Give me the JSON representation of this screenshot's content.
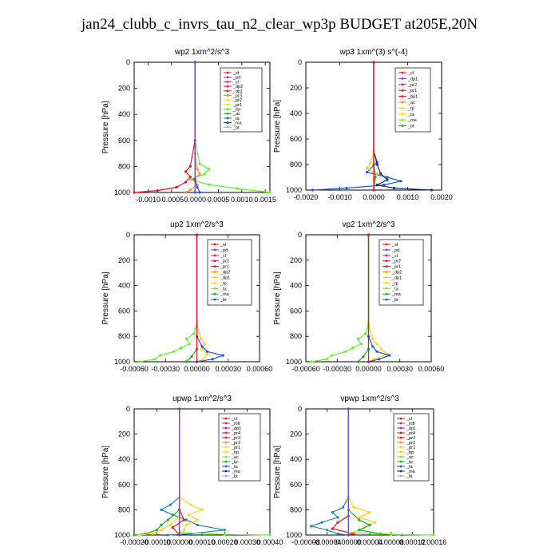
{
  "figure": {
    "title": "jan24_clubb_c_invrs_tau_n2_clear_wp3p  BUDGET at205E,20N"
  },
  "colors": {
    "red": "#e8102a",
    "magenta": "#d01a9a",
    "purple": "#7a3fc0",
    "orange": "#ff8c1a",
    "gold": "#ffd21a",
    "green": "#1faa2a",
    "lime": "#66ee33",
    "blue": "#1a55e8",
    "darkblue": "#1a2a8a",
    "cyan": "#33ddee",
    "gray": "#8888aa",
    "teal": "#2288aa"
  },
  "chart_data": [
    {
      "id": "wp2",
      "type": "line",
      "title": "wp2  1xm^2/s^3",
      "ylabel": "Pressure [hPa]",
      "ylim": [
        1000,
        0
      ],
      "xlim": [
        -0.0013,
        0.0016
      ],
      "yticks": [
        0,
        200,
        400,
        600,
        800,
        1000
      ],
      "xticks": [
        -0.001,
        -0.0005,
        0.0,
        0.0005,
        0.001,
        0.0015
      ],
      "xticklabels": [
        "-0.0010",
        "-0.0005",
        "0.0000",
        "0.0005",
        "0.0010",
        "0.0015"
      ],
      "legend_position": "top-right",
      "legend": [
        "_sf",
        "_pd",
        "_cl",
        "_dp2",
        "_dp1",
        "_pr3",
        "_pr2",
        "_pr1",
        "_bp",
        "_ac",
        "_ta",
        "_ma",
        "_bt"
      ],
      "series": [
        {
          "name": "_pr1",
          "color": "#66ee33",
          "y": [
            0,
            600,
            780,
            820,
            860,
            900,
            940,
            970,
            1000
          ],
          "x": [
            0,
            0,
            0.0001,
            0.0003,
            0.0002,
            -0.0001,
            0.0003,
            0.0009,
            0.0016
          ]
        },
        {
          "name": "_dp1",
          "color": "#e8102a",
          "y": [
            0,
            600,
            800,
            840,
            880,
            920,
            960,
            985,
            1000
          ],
          "x": [
            0,
            0,
            -0.0001,
            -0.0002,
            -0.0001,
            -0.0002,
            -0.0004,
            -0.0008,
            -0.0013
          ]
        },
        {
          "name": "_pr2",
          "color": "#ff8c1a",
          "y": [
            0,
            700,
            820,
            860,
            900,
            940,
            980,
            1000
          ],
          "x": [
            0,
            0,
            5e-05,
            0.0001,
            -5e-05,
            5e-05,
            -0.0001,
            -0.0002
          ]
        },
        {
          "name": "_ac",
          "color": "#1a55e8",
          "y": [
            0,
            900,
            960,
            1000
          ],
          "x": [
            0,
            0,
            5e-05,
            0.0001
          ]
        },
        {
          "name": "_bt",
          "color": "#7a3fc0",
          "y": [
            0,
            1000
          ],
          "x": [
            0,
            0
          ]
        }
      ]
    },
    {
      "id": "wp3",
      "type": "line",
      "title": "wp3  1xm^(3) s^(-4)",
      "ylabel": "Pressure [hPa]",
      "ylim": [
        1000,
        0
      ],
      "xlim": [
        -0.002,
        0.002
      ],
      "yticks": [
        0,
        200,
        400,
        600,
        800,
        1000
      ],
      "xticks": [
        -0.002,
        -0.001,
        0.0,
        0.001,
        0.002
      ],
      "xticklabels": [
        "-0.0020",
        "-0.0010",
        "0.0000",
        "0.0010",
        "0.0020"
      ],
      "legend_position": "top-right",
      "legend": [
        "_cl",
        "_dp1",
        "_pr2",
        "_pr1",
        "_bp1",
        "_ac",
        "_tp",
        "_ta",
        "_ma",
        "_bt"
      ],
      "series": [
        {
          "name": "_tp",
          "color": "#1a55e8",
          "y": [
            0,
            700,
            780,
            860,
            900,
            930,
            960,
            985,
            1000
          ],
          "x": [
            0,
            0,
            0.0001,
            -0.0002,
            0.0004,
            0.0008,
            0.0003,
            -0.0008,
            -0.0018
          ]
        },
        {
          "name": "_ta",
          "color": "#1a2a8a",
          "y": [
            0,
            700,
            800,
            870,
            920,
            960,
            985,
            1000
          ],
          "x": [
            0,
            0,
            0.0001,
            0.0002,
            0.0004,
            0.0001,
            0.0006,
            0.0017
          ]
        },
        {
          "name": "_pr1",
          "color": "#ffd21a",
          "y": [
            0,
            700,
            790,
            830,
            870,
            920,
            1000
          ],
          "x": [
            0,
            0,
            -0.0001,
            -0.0002,
            0.0001,
            0.0,
            0.0
          ]
        },
        {
          "name": "_ac",
          "color": "#1faa2a",
          "y": [
            0,
            800,
            900,
            1000
          ],
          "x": [
            0,
            0,
            5e-05,
            0.0
          ]
        },
        {
          "name": "_dp1",
          "color": "#e8102a",
          "y": [
            0,
            1000
          ],
          "x": [
            0,
            0
          ]
        }
      ]
    },
    {
      "id": "up2",
      "type": "line",
      "title": "up2  1xm^2/s^3",
      "ylabel": "Pressure [hPa]",
      "ylim": [
        1000,
        0
      ],
      "xlim": [
        -0.0006,
        0.0006
      ],
      "yticks": [
        0,
        200,
        400,
        600,
        800,
        1000
      ],
      "xticks": [
        -0.0006,
        -0.0003,
        0.0,
        0.0003,
        0.0006
      ],
      "xticklabels": [
        "-0.00060",
        "-0.00030",
        "0.00000",
        "0.00030",
        "0.00060"
      ],
      "legend_position": "top-right",
      "legend": [
        "_sf",
        "_pd",
        "_cl",
        "_pr2",
        "_pr1",
        "_dp2",
        "_dp1",
        "_tp",
        "_ta",
        "_ma",
        "_bt"
      ],
      "series": [
        {
          "name": "_dp1",
          "color": "#66ee33",
          "y": [
            0,
            700,
            780,
            820,
            860,
            890,
            920,
            950,
            980,
            1000
          ],
          "x": [
            0,
            0,
            -3e-05,
            -0.0001,
            -7e-05,
            -0.00015,
            -0.00022,
            -0.00035,
            -0.0004,
            -0.00055
          ]
        },
        {
          "name": "_pr1",
          "color": "#ffd21a",
          "y": [
            0,
            700,
            820,
            860,
            900,
            940,
            980,
            1000
          ],
          "x": [
            0,
            0,
            4e-05,
            8e-05,
            5e-05,
            0.0001,
            6e-05,
            0.0
          ]
        },
        {
          "name": "_tp",
          "color": "#1a55e8",
          "y": [
            0,
            800,
            880,
            920,
            950,
            980,
            1000
          ],
          "x": [
            0,
            0,
            5e-05,
            0.0001,
            0.00025,
            0.00015,
            0.0
          ]
        },
        {
          "name": "_dp2",
          "color": "#1faa2a",
          "y": [
            0,
            900,
            960,
            1000
          ],
          "x": [
            0,
            0,
            -5e-05,
            -0.0001
          ]
        },
        {
          "name": "_bt",
          "color": "#e8102a",
          "y": [
            0,
            1000
          ],
          "x": [
            0,
            0
          ]
        }
      ]
    },
    {
      "id": "vp2",
      "type": "line",
      "title": "vp2  1xm^2/s^3",
      "ylabel": "Pressure [hPa]",
      "ylim": [
        1000,
        0
      ],
      "xlim": [
        -0.0006,
        0.0006
      ],
      "yticks": [
        0,
        200,
        400,
        600,
        800,
        1000
      ],
      "xticks": [
        -0.0006,
        -0.0003,
        0.0,
        0.0003,
        0.0006
      ],
      "xticklabels": [
        "-0.00060",
        "-0.00030",
        "0.00000",
        "0.00030",
        "0.00060"
      ],
      "legend_position": "top-right",
      "legend": [
        "_sf",
        "_pd",
        "_cl",
        "_pr2",
        "_pr1",
        "_dp2",
        "_dp1",
        "_tp",
        "_ta",
        "_ma",
        "_bt"
      ],
      "series": [
        {
          "name": "_dp1",
          "color": "#66ee33",
          "y": [
            0,
            700,
            780,
            820,
            860,
            890,
            920,
            950,
            980,
            1000
          ],
          "x": [
            0,
            0,
            -3e-05,
            -0.0001,
            -7e-05,
            -0.00015,
            -0.00022,
            -0.00035,
            -0.0004,
            -0.00055
          ]
        },
        {
          "name": "_pr1",
          "color": "#ffd21a",
          "y": [
            0,
            700,
            820,
            860,
            900,
            940,
            980,
            1000
          ],
          "x": [
            0,
            0,
            4e-05,
            8e-05,
            0.00012,
            0.00018,
            5e-05,
            0.0
          ]
        },
        {
          "name": "_tp",
          "color": "#1a55e8",
          "y": [
            0,
            800,
            880,
            920,
            950,
            980,
            1000
          ],
          "x": [
            0,
            0,
            4e-05,
            8e-05,
            0.0002,
            0.0001,
            0.0
          ]
        },
        {
          "name": "_dp2",
          "color": "#1faa2a",
          "y": [
            0,
            900,
            960,
            1000
          ],
          "x": [
            0,
            0,
            -5e-05,
            -0.0001
          ]
        },
        {
          "name": "_bt",
          "color": "#e8102a",
          "y": [
            0,
            1000
          ],
          "x": [
            0,
            0
          ]
        }
      ]
    },
    {
      "id": "upwp",
      "type": "line",
      "title": "upwp  1xm^2/s^3",
      "ylabel": "Pressure [hPa]",
      "ylim": [
        1000,
        0
      ],
      "xlim": [
        -0.0002,
        0.0004
      ],
      "yticks": [
        0,
        200,
        400,
        600,
        800,
        1000
      ],
      "xticks": [
        -0.0002,
        -0.0001,
        0.0,
        0.0001,
        0.0002,
        0.0003,
        0.0004
      ],
      "xticklabels": [
        "-0.00020",
        "-0.00010",
        "0.00000",
        "0.00010",
        "0.00020",
        "0.00030",
        "0.00040"
      ],
      "legend_position": "top-right",
      "legend": [
        "_cl",
        "_mfl",
        "_dp1",
        "_pr4",
        "_pr3",
        "_pr2",
        "_pr1",
        "_bp",
        "_ac",
        "_tp",
        "_ta",
        "_ma",
        "_bt"
      ],
      "series": [
        {
          "name": "_ac",
          "color": "#2288aa",
          "y": [
            0,
            700,
            760,
            800,
            840,
            880,
            920,
            960,
            990,
            1000
          ],
          "x": [
            0,
            0,
            -4e-05,
            -8e-05,
            -3e-05,
            3e-05,
            8e-05,
            0.0002,
            5e-05,
            -5e-05
          ]
        },
        {
          "name": "_pr2",
          "color": "#ffd21a",
          "y": [
            0,
            700,
            760,
            800,
            840,
            880,
            920,
            960,
            1000
          ],
          "x": [
            0,
            0,
            5e-05,
            0.0001,
            4e-05,
            8e-05,
            3e-05,
            2e-05,
            0.0
          ]
        },
        {
          "name": "_bp",
          "color": "#1faa2a",
          "y": [
            0,
            800,
            880,
            920,
            960,
            990,
            1000
          ],
          "x": [
            0,
            0,
            -5e-05,
            -8e-05,
            -0.0001,
            -0.00015,
            -0.0002
          ]
        },
        {
          "name": "_pr1",
          "color": "#ffd21a",
          "y": [
            0,
            850,
            920,
            960,
            990,
            1000
          ],
          "x": [
            0,
            0,
            -4e-05,
            -8e-05,
            -0.00012,
            -0.00018
          ]
        },
        {
          "name": "_dp1",
          "color": "#e8102a",
          "y": [
            0,
            800,
            880,
            940,
            1000
          ],
          "x": [
            0,
            0,
            2e-05,
            -3e-05,
            0.0
          ]
        },
        {
          "name": "_ma",
          "color": "#66ee33",
          "y": [
            0,
            980,
            995,
            1000
          ],
          "x": [
            0,
            0,
            0.0002,
            0.0004
          ]
        },
        {
          "name": "_bt",
          "color": "#7a3fc0",
          "y": [
            0,
            1000
          ],
          "x": [
            0,
            0
          ]
        }
      ]
    },
    {
      "id": "vpwp",
      "type": "line",
      "title": "vpwp  1xm^2/s^3",
      "ylabel": "Pressure [hPa]",
      "ylim": [
        1000,
        0
      ],
      "xlim": [
        -8e-05,
        0.00016
      ],
      "yticks": [
        0,
        200,
        400,
        600,
        800,
        1000
      ],
      "xticks": [
        -8e-05,
        -4e-05,
        0.0,
        4e-05,
        8e-05,
        0.00012,
        0.00016
      ],
      "xticklabels": [
        "-0.00008",
        "-0.00004",
        "0.00000",
        "0.00004",
        "0.00008",
        "0.00012",
        "0.00016"
      ],
      "legend_position": "top-right",
      "legend": [
        "_cl",
        "_mfl",
        "_dp1",
        "_pr4",
        "_pr3",
        "_pr2",
        "_pr1",
        "_bp",
        "_ac",
        "_tp",
        "_ta",
        "_ma",
        "_bt"
      ],
      "series": [
        {
          "name": "_ac",
          "color": "#2288aa",
          "y": [
            0,
            700,
            780,
            820,
            860,
            900,
            930,
            960,
            990,
            1000
          ],
          "x": [
            0,
            0,
            -1e-05,
            -3e-05,
            -2e-05,
            -5e-05,
            -7e-05,
            -4e-05,
            -2e-05,
            0.0
          ]
        },
        {
          "name": "_pr1",
          "color": "#ffd21a",
          "y": [
            0,
            700,
            780,
            820,
            860,
            900,
            940,
            980,
            1000
          ],
          "x": [
            0,
            0,
            1e-05,
            4e-05,
            2e-05,
            5e-05,
            3e-05,
            1e-05,
            0.0
          ]
        },
        {
          "name": "_bp",
          "color": "#1faa2a",
          "y": [
            0,
            800,
            880,
            920,
            960,
            990,
            1000
          ],
          "x": [
            0,
            0,
            2e-05,
            4e-05,
            2e-05,
            6e-05,
            0.0001
          ]
        },
        {
          "name": "_dp1",
          "color": "#e8102a",
          "y": [
            0,
            850,
            900,
            950,
            990,
            1000
          ],
          "x": [
            0,
            0,
            -2e-05,
            -3e-05,
            1e-05,
            0.0
          ]
        },
        {
          "name": "_ma",
          "color": "#66ee33",
          "y": [
            0,
            980,
            995,
            1000
          ],
          "x": [
            0,
            0,
            8e-05,
            0.00016
          ]
        },
        {
          "name": "_bt",
          "color": "#7a3fc0",
          "y": [
            0,
            1000
          ],
          "x": [
            0,
            0
          ]
        }
      ]
    }
  ]
}
